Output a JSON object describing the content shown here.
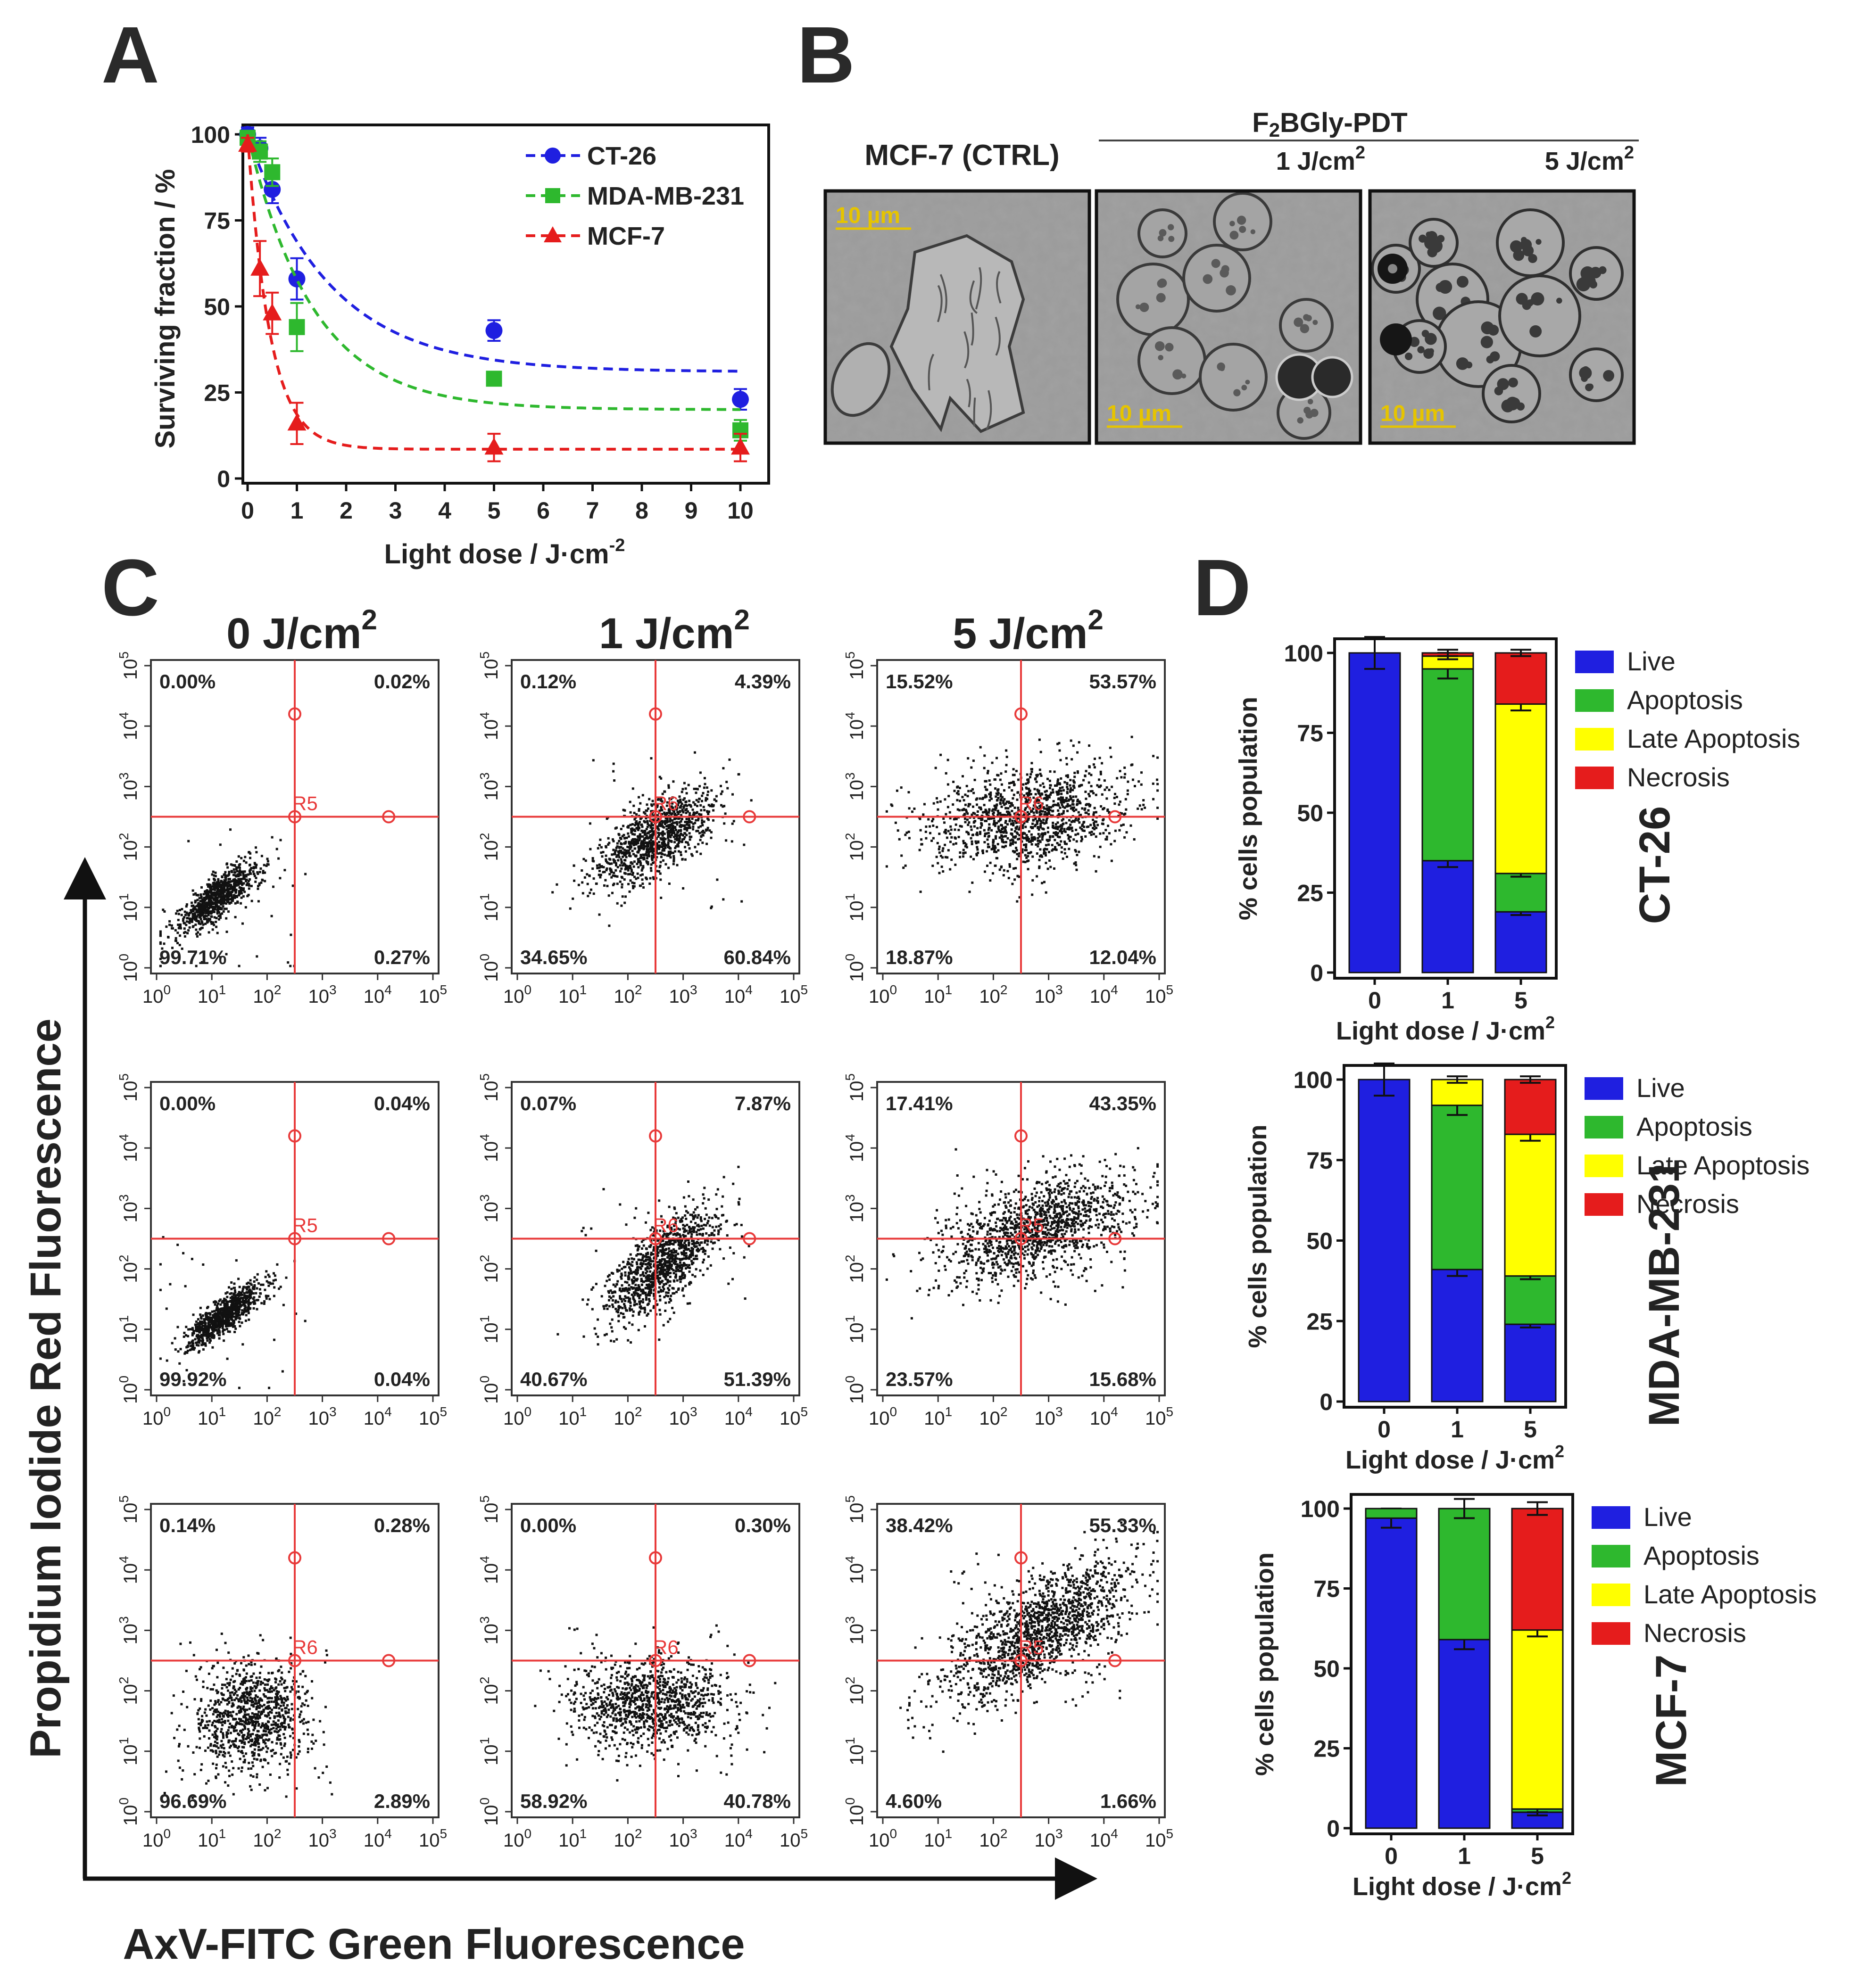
{
  "panel_letters": {
    "A": "A",
    "B": "B",
    "C": "C",
    "D": "D"
  },
  "colors": {
    "blue": "#1f1fe0",
    "green": "#2eb82e",
    "red": "#e51c1c",
    "yellow": "#ffff00",
    "gate": "#e83a3a",
    "scale_bar": "#e6c400"
  },
  "chart_data": [
    {
      "panel": "A",
      "type": "scatter",
      "title": "",
      "xlabel": "Light dose / J·cm",
      "xlabel_sup": "-2",
      "ylabel": "Surviving fraction / %",
      "xlim": [
        0,
        10
      ],
      "ylim": [
        0,
        100
      ],
      "xticks": [
        0,
        1,
        2,
        3,
        4,
        5,
        6,
        7,
        8,
        9,
        10
      ],
      "yticks": [
        0,
        25,
        50,
        75,
        100
      ],
      "legend_position": "top-right",
      "series": [
        {
          "name": "CT-26",
          "color": "#1f1fe0",
          "marker": "circle",
          "x": [
            0,
            0.25,
            0.5,
            1,
            5,
            10
          ],
          "y": [
            100,
            96,
            84,
            58,
            43,
            23
          ],
          "err": [
            2,
            3,
            4,
            6,
            3,
            3
          ],
          "fit": {
            "plateau": 31,
            "k": 0.6
          }
        },
        {
          "name": "MDA-MB-231",
          "color": "#2eb82e",
          "marker": "square",
          "x": [
            0,
            0.25,
            0.5,
            1,
            5,
            10
          ],
          "y": [
            99,
            95,
            89,
            44,
            29,
            14
          ],
          "err": [
            2,
            3,
            4,
            7,
            2,
            3
          ],
          "fit": {
            "plateau": 20,
            "k": 0.75
          }
        },
        {
          "name": "MCF-7",
          "color": "#e51c1c",
          "marker": "triangle",
          "x": [
            0,
            0.25,
            0.5,
            1,
            5,
            10
          ],
          "y": [
            97,
            61,
            48,
            16,
            9,
            9
          ],
          "err": [
            2,
            8,
            6,
            6,
            4,
            4
          ],
          "fit": {
            "plateau": 8.5,
            "k": 2.2
          }
        }
      ]
    },
    {
      "panel": "C",
      "type": "scatter",
      "xlabel": "AxV-FITC Green Fluorescence",
      "ylabel": "Propidium Iodide Red Fluorescence",
      "axis_scale": "log",
      "xlim": [
        1,
        100000
      ],
      "ylim": [
        1,
        100000
      ],
      "column_titles": [
        "0 J/cm",
        "1 J/cm",
        "5 J/cm"
      ],
      "column_title_sup": "2",
      "tick_base": "10",
      "tick_exps": [
        "0",
        "1",
        "2",
        "3",
        "4",
        "5"
      ],
      "plots": [
        {
          "row": "CT-26",
          "dose": "0",
          "gate": "R5",
          "quadrants": {
            "ul": "0.00%",
            "ur": "0.02%",
            "ll": "99.71%",
            "lr": "0.27%"
          }
        },
        {
          "row": "CT-26",
          "dose": "1",
          "gate": "R6",
          "quadrants": {
            "ul": "0.12%",
            "ur": "4.39%",
            "ll": "34.65%",
            "lr": "60.84%"
          }
        },
        {
          "row": "CT-26",
          "dose": "5",
          "gate": "R6",
          "quadrants": {
            "ul": "15.52%",
            "ur": "53.57%",
            "ll": "18.87%",
            "lr": "12.04%"
          }
        },
        {
          "row": "MDA-MB-231",
          "dose": "0",
          "gate": "R5",
          "quadrants": {
            "ul": "0.00%",
            "ur": "0.04%",
            "ll": "99.92%",
            "lr": "0.04%"
          }
        },
        {
          "row": "MDA-MB-231",
          "dose": "1",
          "gate": "R6",
          "quadrants": {
            "ul": "0.07%",
            "ur": "7.87%",
            "ll": "40.67%",
            "lr": "51.39%"
          }
        },
        {
          "row": "MDA-MB-231",
          "dose": "5",
          "gate": "R5",
          "quadrants": {
            "ul": "17.41%",
            "ur": "43.35%",
            "ll": "23.57%",
            "lr": "15.68%"
          }
        },
        {
          "row": "MCF-7",
          "dose": "0",
          "gate": "R6",
          "quadrants": {
            "ul": "0.14%",
            "ur": "0.28%",
            "ll": "96.69%",
            "lr": "2.89%"
          }
        },
        {
          "row": "MCF-7",
          "dose": "1",
          "gate": "R6",
          "quadrants": {
            "ul": "0.00%",
            "ur": "0.30%",
            "ll": "58.92%",
            "lr": "40.78%"
          }
        },
        {
          "row": "MCF-7",
          "dose": "5",
          "gate": "R5",
          "quadrants": {
            "ul": "38.42%",
            "ur": "55.33%",
            "ll": "4.60%",
            "lr": "1.66%"
          }
        }
      ]
    },
    {
      "panel": "D",
      "type": "bar",
      "stacked": true,
      "ylabel": "% cells population",
      "xlabel": "Light dose / J·cm",
      "xlabel_sup": "2",
      "categories": [
        "0",
        "1",
        "5"
      ],
      "ylim": [
        0,
        100
      ],
      "yticks": [
        0,
        25,
        50,
        75,
        100
      ],
      "legend_position": "right",
      "series_names": [
        "Live",
        "Apoptosis",
        "Late Apoptosis",
        "Necrosis"
      ],
      "series_colors": [
        "#1f1fe0",
        "#2eb82e",
        "#ffff00",
        "#e51c1c"
      ],
      "subcharts": [
        {
          "title": "CT-26",
          "values": {
            "Live": [
              100,
              35,
              19
            ],
            "Apoptosis": [
              0,
              60,
              12
            ],
            "Late Apoptosis": [
              0,
              4,
              53
            ],
            "Necrosis": [
              0,
              1,
              16
            ]
          },
          "errors": {
            "Live": [
              5,
              2,
              1
            ],
            "Apoptosis": [
              0,
              3,
              1
            ],
            "Late Apoptosis": [
              0,
              1,
              2
            ],
            "Necrosis": [
              0,
              1,
              1
            ]
          }
        },
        {
          "title": "MDA-MB-231",
          "values": {
            "Live": [
              100,
              41,
              24
            ],
            "Apoptosis": [
              0,
              51,
              15
            ],
            "Late Apoptosis": [
              0,
              8,
              44
            ],
            "Necrosis": [
              0,
              0,
              17
            ]
          },
          "errors": {
            "Live": [
              5,
              2,
              1
            ],
            "Apoptosis": [
              0,
              3,
              1
            ],
            "Late Apoptosis": [
              0,
              1,
              2
            ],
            "Necrosis": [
              0,
              0,
              1
            ]
          }
        },
        {
          "title": "MCF-7",
          "values": {
            "Live": [
              97,
              59,
              5
            ],
            "Apoptosis": [
              3,
              41,
              1
            ],
            "Late Apoptosis": [
              0,
              0,
              56
            ],
            "Necrosis": [
              0,
              0,
              38
            ]
          },
          "errors": {
            "Live": [
              3,
              3,
              1
            ],
            "Apoptosis": [
              0,
              3,
              1
            ],
            "Late Apoptosis": [
              0,
              0,
              2
            ],
            "Necrosis": [
              0,
              0,
              2
            ]
          }
        }
      ]
    }
  ],
  "panel_b": {
    "header": "F",
    "header_sub": "2",
    "header_rest": "BGly-PDT",
    "images": [
      {
        "label": "MCF-7 (CTRL)",
        "scale": "10 µm",
        "sup": ""
      },
      {
        "label": "1 J/cm",
        "scale": "10 µm",
        "sup": "2"
      },
      {
        "label": "5 J/cm",
        "scale": "10 µm",
        "sup": "2"
      }
    ]
  }
}
